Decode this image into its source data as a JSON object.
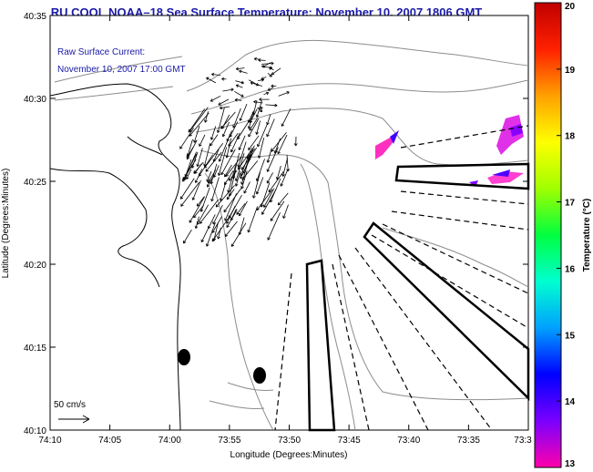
{
  "title": "RU COOL  NOAA–18  Sea Surface Temperature:  November 10, 2007 1806 GMT",
  "current_note": {
    "line1": "Raw Surface Current:",
    "line2": "November 10, 2007 17:00 GMT"
  },
  "scale_note": "50 cm/s",
  "axes": {
    "xlabel": "Longitude (Degrees:Minutes)",
    "ylabel": "Latitude (Degrees:Minutes)",
    "x_ticks": [
      "74:10",
      "74:05",
      "74:00",
      "73:55",
      "73:50",
      "73:45",
      "73:40",
      "73:35",
      "73:3"
    ],
    "y_ticks": [
      "40:35",
      "40:30",
      "40:25",
      "40:20",
      "40:15",
      "40:10"
    ]
  },
  "colorbar": {
    "label": "Temperature (°C)",
    "ticks": [
      "20",
      "19",
      "18",
      "17",
      "16",
      "15",
      "14",
      "13"
    ],
    "range": [
      13,
      20
    ],
    "colors": [
      "#ff00aa",
      "#7a00ff",
      "#0000ff",
      "#00a0ff",
      "#00ffd0",
      "#00ff40",
      "#a0ff00",
      "#ffff00",
      "#ffa000",
      "#ff2000",
      "#c00000"
    ]
  }
}
